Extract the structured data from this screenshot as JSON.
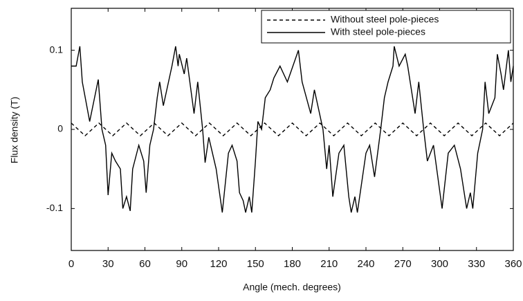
{
  "chart_data": {
    "type": "line",
    "x_label": "Angle (mech. degrees)",
    "y_label": "Flux density (T)",
    "xlim": [
      0,
      360
    ],
    "ylim": [
      -0.153,
      0.153
    ],
    "xticks": [
      0,
      30,
      60,
      90,
      120,
      150,
      180,
      210,
      240,
      270,
      300,
      330,
      360
    ],
    "yticks": [
      -0.1,
      0,
      0.1
    ],
    "legend": "upper right",
    "series": [
      {
        "name": "Without steel pole-pieces",
        "color": "#000000",
        "style": "dashed",
        "x": [
          0,
          5.625,
          11.25,
          16.875,
          22.5,
          28.125,
          33.75,
          39.375,
          45,
          50.625,
          56.25,
          61.875,
          67.5,
          73.125,
          78.75,
          84.375,
          90,
          95.625,
          101.25,
          106.875,
          112.5,
          118.125,
          123.75,
          129.375,
          135,
          140.625,
          146.25,
          151.875,
          157.5,
          163.125,
          168.75,
          174.375,
          180,
          185.625,
          191.25,
          196.875,
          202.5,
          208.125,
          213.75,
          219.375,
          225,
          230.625,
          236.25,
          241.875,
          247.5,
          253.125,
          258.75,
          264.375,
          270,
          275.625,
          281.25,
          286.875,
          292.5,
          298.125,
          303.75,
          309.375,
          315,
          320.625,
          326.25,
          331.875,
          337.5,
          343.125,
          348.75,
          354.375,
          360
        ],
        "values": [
          0.008,
          0,
          -0.008,
          0,
          0.008,
          0,
          -0.008,
          0,
          0.008,
          0,
          -0.008,
          0,
          0.008,
          0,
          -0.008,
          0,
          0.008,
          0,
          -0.008,
          0,
          0.008,
          0,
          -0.008,
          0,
          0.008,
          0,
          -0.008,
          0,
          0.008,
          0,
          -0.008,
          0,
          0.008,
          0,
          -0.008,
          0,
          0.008,
          0,
          -0.008,
          0,
          0.008,
          0,
          -0.008,
          0,
          0.008,
          0,
          -0.008,
          0,
          0.008,
          0,
          -0.008,
          0,
          0.008,
          0,
          -0.008,
          0,
          0.008,
          0,
          -0.008,
          0,
          0.008,
          0,
          -0.008,
          0,
          0.008
        ]
      },
      {
        "name": "With steel pole-pieces",
        "color": "#000000",
        "style": "solid",
        "x": [
          0,
          4,
          7,
          9,
          15,
          22,
          25,
          28,
          30,
          33,
          36,
          40,
          42,
          45,
          48,
          50,
          55,
          59,
          61,
          64,
          67,
          70,
          72,
          75,
          82,
          85,
          87,
          88,
          92,
          94,
          100,
          103,
          107,
          109,
          112,
          118,
          123,
          128,
          131,
          135,
          137,
          140,
          142,
          145,
          147,
          150,
          152,
          155,
          158,
          162,
          165,
          170,
          176,
          185,
          188,
          195,
          198,
          205,
          208,
          210,
          213,
          218,
          222,
          226,
          228,
          231,
          233,
          240,
          243,
          247,
          252,
          255,
          258,
          262,
          263,
          267,
          272,
          274,
          280,
          283,
          287,
          290,
          295,
          302,
          307,
          312,
          317,
          322,
          325,
          327,
          331,
          335,
          337,
          340,
          345,
          347,
          350,
          352,
          356,
          358,
          360
        ],
        "values": [
          0.08,
          0.08,
          0.105,
          0.06,
          0.01,
          0.063,
          0,
          -0.02,
          -0.083,
          -0.03,
          -0.04,
          -0.05,
          -0.1,
          -0.085,
          -0.103,
          -0.05,
          -0.02,
          -0.04,
          -0.08,
          -0.02,
          0,
          0.04,
          0.06,
          0.03,
          0.08,
          0.105,
          0.08,
          0.095,
          0.07,
          0.09,
          0.02,
          0.06,
          0,
          -0.042,
          -0.01,
          -0.05,
          -0.105,
          -0.03,
          -0.02,
          -0.04,
          -0.08,
          -0.09,
          -0.105,
          -0.085,
          -0.105,
          -0.04,
          0.01,
          0,
          0.04,
          0.05,
          0.065,
          0.08,
          0.06,
          0.1,
          0.06,
          0.02,
          0.05,
          0,
          -0.05,
          -0.02,
          -0.085,
          -0.03,
          -0.02,
          -0.085,
          -0.105,
          -0.085,
          -0.105,
          -0.03,
          -0.02,
          -0.06,
          0,
          0.04,
          0.06,
          0.08,
          0.105,
          0.08,
          0.095,
          0.08,
          0.02,
          0.06,
          0,
          -0.04,
          -0.02,
          -0.1,
          -0.03,
          -0.02,
          -0.05,
          -0.1,
          -0.08,
          -0.1,
          -0.03,
          0,
          0.06,
          0.02,
          0.04,
          0.095,
          0.07,
          0.05,
          0.1,
          0.06,
          0.08
        ]
      }
    ]
  }
}
